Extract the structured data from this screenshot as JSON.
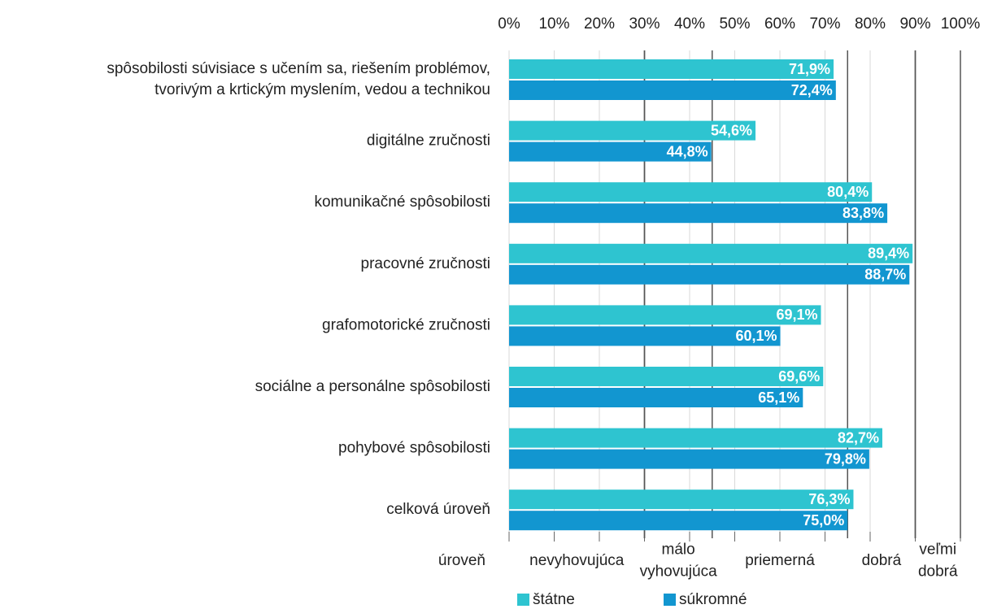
{
  "chart_data": {
    "type": "hbar",
    "categories": [
      [
        "spôsobilosti súvisiace s učením sa, riešením problémov,",
        "tvorivým a krtickým myslením, vedou a technikou"
      ],
      [
        "digitálne zručnosti"
      ],
      [
        "komunikačné spôsobilosti"
      ],
      [
        "pracovné zručnosti"
      ],
      [
        "grafomotorické zručnosti"
      ],
      [
        "sociálne a personálne spôsobilosti"
      ],
      [
        "pohybové spôsobilosti"
      ],
      [
        "celková úroveň"
      ]
    ],
    "series": [
      {
        "name": "štátne",
        "color": "#2ec4d0",
        "values": [
          71.9,
          54.6,
          80.4,
          89.4,
          69.1,
          69.6,
          82.7,
          76.3
        ],
        "value_labels": [
          "71,9%",
          "54,6%",
          "80,4%",
          "89,4%",
          "69,1%",
          "69,6%",
          "82,7%",
          "76,3%"
        ]
      },
      {
        "name": "súkromné",
        "color": "#1296d0",
        "values": [
          72.4,
          44.8,
          83.8,
          88.7,
          60.1,
          65.1,
          79.8,
          75.0
        ],
        "value_labels": [
          "72,4%",
          "44,8%",
          "83,8%",
          "88,7%",
          "60,1%",
          "65,1%",
          "79,8%",
          "75,0%"
        ]
      }
    ],
    "xlim": [
      0,
      100
    ],
    "xticks": [
      {
        "value": 0,
        "label": "0%"
      },
      {
        "value": 10,
        "label": "10%"
      },
      {
        "value": 20,
        "label": "20%"
      },
      {
        "value": 30,
        "label": "30%"
      },
      {
        "value": 40,
        "label": "40%"
      },
      {
        "value": 50,
        "label": "50%"
      },
      {
        "value": 60,
        "label": "60%"
      },
      {
        "value": 70,
        "label": "70%"
      },
      {
        "value": 80,
        "label": "80%"
      },
      {
        "value": 90,
        "label": "90%"
      },
      {
        "value": 100,
        "label": "100%"
      }
    ],
    "grid": true,
    "level_title": "úroveň",
    "levels": [
      {
        "label": [
          "nevyhovujúca"
        ],
        "from": 0,
        "to": 30
      },
      {
        "label": [
          "málo",
          "vyhovujúca"
        ],
        "from": 30,
        "to": 45
      },
      {
        "label": [
          "priemerná"
        ],
        "from": 45,
        "to": 75
      },
      {
        "label": [
          "dobrá"
        ],
        "from": 75,
        "to": 90
      },
      {
        "label": [
          "veľmi",
          "dobrá"
        ],
        "from": 90,
        "to": 100
      }
    ]
  }
}
